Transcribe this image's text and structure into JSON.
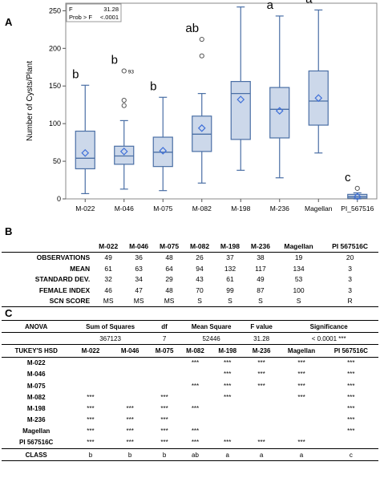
{
  "panels": {
    "a": "A",
    "b": "B",
    "c": "C"
  },
  "chart_data": {
    "type": "boxplot",
    "ylabel": "Number of Cysts/Plant",
    "ylim": [
      0,
      260
    ],
    "yticks": [
      0,
      50,
      100,
      150,
      200,
      250
    ],
    "stats_box": {
      "f_label": "F",
      "f_value": "31.28",
      "p_label": "Prob > F",
      "p_value": "<.0001"
    },
    "categories": [
      "M-022",
      "M-046",
      "M-075",
      "M-082",
      "M-198",
      "M-236",
      "Magellan",
      "PI_567516"
    ],
    "boxes": [
      {
        "cat": "M-022",
        "whisker_low": 7,
        "q1": 40,
        "median": 54,
        "q3": 90,
        "whisker_high": 151,
        "mean": 61,
        "outliers": [],
        "group": "b"
      },
      {
        "cat": "M-046",
        "whisker_low": 13,
        "q1": 46,
        "median": 57,
        "q3": 70,
        "whisker_high": 104,
        "mean": 63,
        "outliers": [
          124,
          131,
          170
        ],
        "outlier_label": "93",
        "group": "b"
      },
      {
        "cat": "M-075",
        "whisker_low": 11,
        "q1": 43,
        "median": 62,
        "q3": 82,
        "whisker_high": 135,
        "mean": 64,
        "outliers": [],
        "group": "b"
      },
      {
        "cat": "M-082",
        "whisker_low": 21,
        "q1": 63,
        "median": 86,
        "q3": 110,
        "whisker_high": 140,
        "mean": 94,
        "outliers": [
          190,
          212
        ],
        "group": "ab"
      },
      {
        "cat": "M-198",
        "whisker_low": 38,
        "q1": 79,
        "median": 140,
        "q3": 156,
        "whisker_high": 255,
        "mean": 132,
        "outliers": [],
        "group": "a"
      },
      {
        "cat": "M-236",
        "whisker_low": 28,
        "q1": 81,
        "median": 119,
        "q3": 148,
        "whisker_high": 243,
        "mean": 117,
        "outliers": [],
        "group": "a"
      },
      {
        "cat": "Magellan",
        "whisker_low": 61,
        "q1": 98,
        "median": 130,
        "q3": 170,
        "whisker_high": 251,
        "mean": 134,
        "outliers": [],
        "group": "a"
      },
      {
        "cat": "PI_567516",
        "whisker_low": 0,
        "q1": 1,
        "median": 3,
        "q3": 6,
        "whisker_high": 8,
        "mean": 3,
        "outliers": [
          14
        ],
        "group": "c"
      }
    ],
    "colors": {
      "box_fill": "#ccd8ea",
      "box_stroke": "#4a6fa5",
      "mean_marker": "#3e6fd8",
      "outlier": "#555555"
    }
  },
  "table_b": {
    "headers": [
      "",
      "M-022",
      "M-046",
      "M-075",
      "M-082",
      "M-198",
      "M-236",
      "Magellan",
      "PI 567516C"
    ],
    "rows": [
      [
        "OBSERVATIONS",
        "49",
        "36",
        "48",
        "26",
        "37",
        "38",
        "19",
        "20"
      ],
      [
        "MEAN",
        "61",
        "63",
        "64",
        "94",
        "132",
        "117",
        "134",
        "3"
      ],
      [
        "STANDARD DEV.",
        "32",
        "34",
        "29",
        "43",
        "61",
        "49",
        "53",
        "3"
      ],
      [
        "FEMALE INDEX",
        "46",
        "47",
        "48",
        "70",
        "99",
        "87",
        "100",
        "3"
      ],
      [
        "SCN SCORE",
        "MS",
        "MS",
        "MS",
        "S",
        "S",
        "S",
        "S",
        "R"
      ]
    ]
  },
  "table_c": {
    "anova_headers": [
      "ANOVA",
      "Sum of Squares",
      "df",
      "Mean Square",
      "F value",
      "Significance"
    ],
    "anova_values": [
      "367123",
      "7",
      "52446",
      "31.28",
      "< 0.0001 ***"
    ],
    "tukey_headers": [
      "TUKEY'S HSD",
      "M-022",
      "M-046",
      "M-075",
      "M-082",
      "M-198",
      "M-236",
      "Magellan",
      "PI 567516C"
    ],
    "tukey_rows": [
      [
        "M-022",
        "",
        "",
        "",
        "***",
        "***",
        "***",
        "***",
        "***"
      ],
      [
        "M-046",
        "",
        "",
        "",
        "",
        "***",
        "***",
        "***",
        "***"
      ],
      [
        "M-075",
        "",
        "",
        "",
        "***",
        "***",
        "***",
        "***",
        "***"
      ],
      [
        "M-082",
        "***",
        "",
        "***",
        "",
        "***",
        "",
        "***",
        "***"
      ],
      [
        "M-198",
        "***",
        "***",
        "***",
        "***",
        "",
        "",
        "",
        "***"
      ],
      [
        "M-236",
        "***",
        "***",
        "***",
        "",
        "",
        "",
        "",
        "***"
      ],
      [
        "Magellan",
        "***",
        "***",
        "***",
        "***",
        "",
        "",
        "",
        "***"
      ],
      [
        "PI 567516C",
        "***",
        "***",
        "***",
        "***",
        "***",
        "***",
        "***",
        ""
      ]
    ],
    "class_row": [
      "CLASS",
      "b",
      "b",
      "b",
      "ab",
      "a",
      "a",
      "a",
      "c"
    ]
  }
}
